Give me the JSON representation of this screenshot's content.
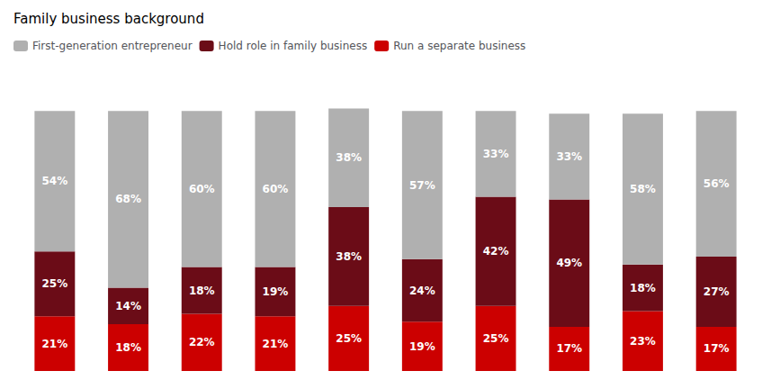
{
  "chart_data": {
    "type": "bar",
    "title": "Family business background",
    "categories": [
      null,
      null,
      null,
      null,
      null,
      null,
      null,
      null,
      null,
      null
    ],
    "series": [
      {
        "name": "First-generation entrepreneur",
        "color": "#b0b0b0",
        "values": [
          54,
          68,
          60,
          60,
          38,
          57,
          33,
          33,
          58,
          56
        ],
        "value_labels": [
          "54%",
          "68%",
          "60%",
          "60%",
          "38%",
          "57%",
          "33%",
          "33%",
          "58%",
          "56%"
        ]
      },
      {
        "name": "Hold role in family business",
        "color": "#6b0c17",
        "values": [
          25,
          14,
          18,
          19,
          38,
          24,
          42,
          49,
          18,
          27
        ],
        "value_labels": [
          "25%",
          "14%",
          "18%",
          "19%",
          "38%",
          "24%",
          "42%",
          "49%",
          "18%",
          "27%"
        ]
      },
      {
        "name": "Run a separate business",
        "color": "#cc0000",
        "values": [
          21,
          18,
          22,
          21,
          25,
          19,
          25,
          17,
          23,
          17
        ],
        "value_labels": [
          "21%",
          "18%",
          "22%",
          "21%",
          "25%",
          "19%",
          "25%",
          "17%",
          "23%",
          "17%"
        ]
      }
    ],
    "ylim": [
      0,
      115
    ],
    "stacked": true,
    "data_labels": true,
    "grid": false,
    "legend": "upper left",
    "tick_labels": false
  }
}
